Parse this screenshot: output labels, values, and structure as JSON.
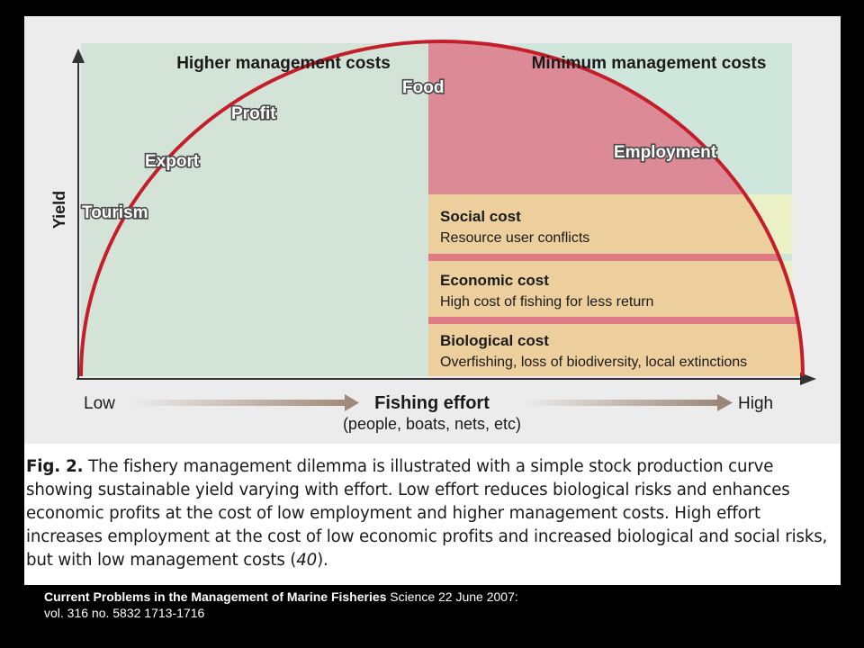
{
  "regions": {
    "left_header": "Higher management costs",
    "right_header": "Minimum management costs"
  },
  "axes": {
    "y_label": "Yield",
    "x_low": "Low",
    "x_title": "Fishing effort",
    "x_subtitle": "(people, boats, nets, etc)",
    "x_high": "High"
  },
  "curve_labels": {
    "tourism": "Tourism",
    "export": "Export",
    "profit": "Profit",
    "food": "Food",
    "employment": "Employment"
  },
  "costs": [
    {
      "title": "Social cost",
      "desc": "Resource user conflicts"
    },
    {
      "title": "Economic cost",
      "desc": "High cost of fishing for less return"
    },
    {
      "title": "Biological cost",
      "desc": "Overfishing, loss of biodiversity, local extinctions"
    }
  ],
  "caption": {
    "fig_label": "Fig. 2.",
    "lines": [
      "The fishery management dilemma is illustrated with a simple stock production curve",
      "showing sustainable yield varying with effort. Low effort reduces biological risks and enhances",
      "economic profits at the cost of low employment and higher management costs. High effort",
      "increases employment at the cost of low economic profits and increased biological and social risks,",
      "but with low management costs (",
      "40",
      ")."
    ]
  },
  "citation": {
    "title": "Current Problems in the Management of Marine Fisheries",
    "source": " Science 22 June 2007:",
    "volume": "vol. 316 no. 5832 1713-1716"
  },
  "colors": {
    "curve": "#c41e2a",
    "region_left": "#d4e3d8",
    "region_right": "#cfe6dc",
    "pink_zone": "#dc8a96",
    "cost_band": "#eccf9c",
    "cost_band_edge": "#ebf0c6",
    "divider": "#e07a86"
  }
}
